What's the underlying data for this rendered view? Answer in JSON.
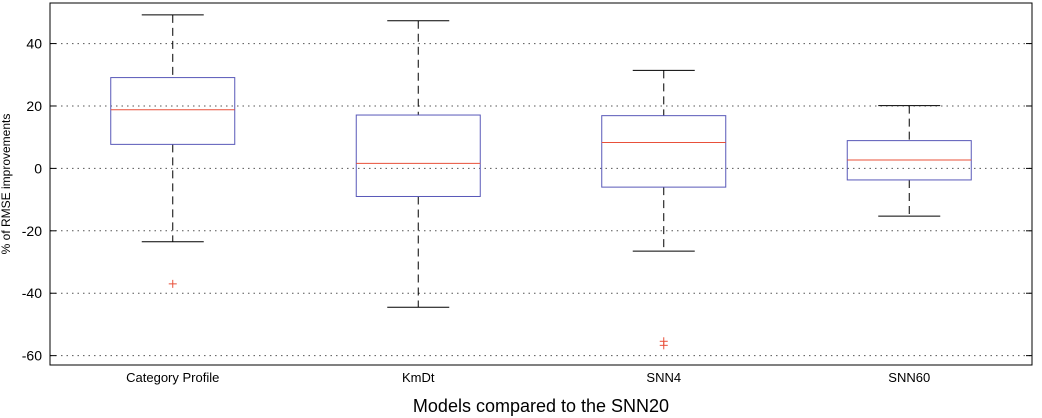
{
  "chart_data": {
    "type": "boxplot",
    "title": "",
    "xlabel": "Models compared to the SNN20",
    "ylabel": "% of RMSE improvements",
    "ylim": [
      -63,
      53
    ],
    "yticks": [
      -60,
      -40,
      -20,
      0,
      20,
      40
    ],
    "grid": true,
    "colors": {
      "box": "#5858b8",
      "median": "#e8503a",
      "whisker": "#000000",
      "outlier": "#e8503a",
      "grid": "#555555"
    },
    "categories": [
      "Category Profile",
      "KmDt",
      "SNN4",
      "SNN60"
    ],
    "boxes": [
      {
        "category": "Category Profile",
        "whisker_low": -23.5,
        "q1": 7.7,
        "median": 18.8,
        "q3": 29.1,
        "whisker_high": 49.2,
        "outliers": [
          -37.0
        ]
      },
      {
        "category": "KmDt",
        "whisker_low": -44.5,
        "q1": -9.0,
        "median": 1.6,
        "q3": 17.1,
        "whisker_high": 47.3,
        "outliers": []
      },
      {
        "category": "SNN4",
        "whisker_low": -26.5,
        "q1": -6.0,
        "median": 8.3,
        "q3": 16.9,
        "whisker_high": 31.4,
        "outliers": [
          -55.4,
          -56.7
        ]
      },
      {
        "category": "SNN60",
        "whisker_low": -15.3,
        "q1": -3.7,
        "median": 2.7,
        "q3": 8.9,
        "whisker_high": 20.1,
        "outliers": []
      }
    ]
  }
}
